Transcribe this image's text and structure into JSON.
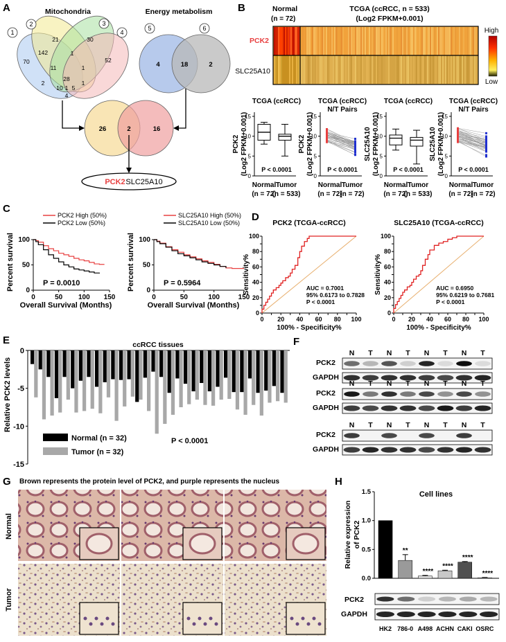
{
  "panels": {
    "A": "A",
    "B": "B",
    "C": "C",
    "D": "D",
    "E": "E",
    "F": "F",
    "G": "G",
    "H": "H"
  },
  "venn": {
    "mito_title": "Mitochondria",
    "energy_title": "Energy metabolism",
    "set_ids": [
      "1",
      "2",
      "3",
      "4",
      "5",
      "6"
    ],
    "mito_counts": [
      "70",
      "142",
      "21",
      "1",
      "30",
      "11",
      "1",
      "52",
      "28",
      "1",
      "2",
      "10",
      "5",
      "1",
      "4"
    ],
    "energy_counts": [
      "4",
      "18",
      "2"
    ],
    "overlap_counts": [
      "26",
      "2",
      "16"
    ],
    "result_genes": [
      "PCK2",
      "SLC25A10"
    ]
  },
  "heatmap": {
    "normal_label": "Normal",
    "normal_n": "(n = 72)",
    "title_line1": "TCGA (ccRCC, n = 533)",
    "title_line2": "(Log2 FPKM+0.001)",
    "row_labels": [
      "PCK2",
      "SLC25A10"
    ],
    "scale_high": "High",
    "scale_low": "Low"
  },
  "box_plots": [
    {
      "title": "TCGA (ccRCC)",
      "subtitle": "",
      "ylabel1": "PCK2",
      "ylabel2": "(Log2 FPKM+0.001)",
      "pvalue": "P < 0.0001",
      "xcat1": "Normal",
      "xcat2": "Tumor",
      "n1": "(n = 72)",
      "n2": "(n = 533)",
      "ticks": [
        "0",
        "5",
        "10",
        "15"
      ]
    },
    {
      "title": "TCGA (ccRCC)",
      "subtitle": "N/T Pairs",
      "ylabel1": "PCK2",
      "ylabel2": "(Log2 FPKM+0.001)",
      "pvalue": "P < 0.0001",
      "xcat1": "Normal",
      "xcat2": "Tumor",
      "n1": "(n = 72)",
      "n2": "(n = 72)",
      "ticks": [
        "0",
        "5",
        "10",
        "15"
      ]
    },
    {
      "title": "TCGA (ccRCC)",
      "subtitle": "",
      "ylabel1": "SLC25A10",
      "ylabel2": "(Log2 FPKM+0.001)",
      "pvalue": "P < 0.0001",
      "xcat1": "Normal",
      "xcat2": "Tumor",
      "n1": "(n = 72)",
      "n2": "(n = 533)",
      "ticks": [
        "0",
        "5",
        "10",
        "15"
      ]
    },
    {
      "title": "TCGA (ccRCC)",
      "subtitle": "N/T Pairs",
      "ylabel1": "SLC25A10",
      "ylabel2": "(Log2 FPKM+0.001)",
      "pvalue": "P < 0.0001",
      "xcat1": "Normal",
      "xcat2": "Tumor",
      "n1": "(n = 72)",
      "n2": "(n = 72)",
      "ticks": [
        "0",
        "5",
        "10",
        "15"
      ]
    }
  ],
  "chart_data": [
    {
      "type": "line",
      "id": "km-pck2",
      "title": "",
      "xlabel": "Overall Survival (Months)",
      "ylabel": "Percent survival",
      "xlim": [
        0,
        150
      ],
      "ylim": [
        0,
        100
      ],
      "xticks": [
        "0",
        "50",
        "100",
        "150"
      ],
      "yticks": [
        "0",
        "50",
        "100"
      ],
      "legend": [
        "PCK2 High (50%)",
        "PCK2 Low  (50%)"
      ],
      "pvalue": "P = 0.0010",
      "series": [
        {
          "name": "PCK2 High (50%)",
          "color": "#e84040",
          "x": [
            0,
            5,
            10,
            20,
            30,
            40,
            50,
            60,
            70,
            80,
            90,
            100,
            110,
            120,
            130,
            140
          ],
          "y": [
            100,
            98,
            95,
            88,
            82,
            78,
            73,
            70,
            67,
            63,
            60,
            58,
            55,
            52,
            51,
            51
          ]
        },
        {
          "name": "PCK2 Low (50%)",
          "color": "#000000",
          "x": [
            0,
            5,
            10,
            20,
            30,
            40,
            50,
            60,
            70,
            80,
            90,
            100,
            110,
            120,
            130
          ],
          "y": [
            100,
            96,
            90,
            80,
            70,
            63,
            56,
            50,
            46,
            42,
            40,
            38,
            36,
            34,
            33
          ]
        }
      ]
    },
    {
      "type": "line",
      "id": "km-slc",
      "title": "",
      "xlabel": "Overall Survival (Months)",
      "ylabel": "Percent survival",
      "xlim": [
        0,
        150
      ],
      "ylim": [
        0,
        100
      ],
      "xticks": [
        "0",
        "50",
        "100",
        "150"
      ],
      "yticks": [
        "0",
        "50",
        "100"
      ],
      "legend": [
        "SLC25A10 High (50%)",
        "SLC25A10 Low  (50%)"
      ],
      "pvalue": "P = 0.5964",
      "series": [
        {
          "name": "SLC25A10 High (50%)",
          "color": "#e84040",
          "x": [
            0,
            5,
            10,
            20,
            30,
            40,
            50,
            60,
            70,
            80,
            90,
            100,
            110,
            120,
            130,
            150
          ],
          "y": [
            100,
            97,
            93,
            86,
            80,
            75,
            70,
            66,
            62,
            58,
            55,
            51,
            47,
            44,
            43,
            43
          ]
        },
        {
          "name": "SLC25A10 Low (50%)",
          "color": "#000000",
          "x": [
            0,
            5,
            10,
            20,
            30,
            40,
            50,
            60,
            70,
            80,
            90,
            100,
            110,
            120
          ],
          "y": [
            100,
            96,
            92,
            85,
            78,
            72,
            68,
            64,
            60,
            56,
            53,
            50,
            47,
            44
          ]
        }
      ]
    },
    {
      "type": "line",
      "id": "roc-pck2",
      "title": "PCK2 (TCGA-ccRCC)",
      "xlabel": "100% - Specificity%",
      "ylabel": "Sensitivity%",
      "xlim": [
        0,
        100
      ],
      "ylim": [
        0,
        100
      ],
      "xticks": [
        "0",
        "10",
        "20",
        "30",
        "40",
        "50",
        "60",
        "70",
        "80",
        "90",
        "100"
      ],
      "yticks": [
        "0",
        "10",
        "20",
        "30",
        "40",
        "50",
        "60",
        "70",
        "80",
        "90",
        "100"
      ],
      "annotation": [
        "AUC = 0.7001",
        "95% 0.6173 to 0.7828",
        "P < 0.0001"
      ],
      "series": [
        {
          "name": "ROC",
          "color": "#e02020",
          "x": [
            0,
            2,
            4,
            6,
            8,
            10,
            12,
            15,
            18,
            20,
            22,
            25,
            28,
            30,
            32,
            35,
            38,
            40,
            42,
            45,
            48,
            50,
            55,
            60,
            70,
            80,
            90,
            100
          ],
          "y": [
            0,
            5,
            10,
            14,
            18,
            22,
            26,
            30,
            33,
            36,
            39,
            42,
            46,
            48,
            52,
            57,
            62,
            72,
            80,
            87,
            93,
            97,
            100,
            100,
            100,
            100,
            100,
            100
          ]
        }
      ]
    },
    {
      "type": "line",
      "id": "roc-slc",
      "title": "SLC25A10 (TCGA-ccRCC)",
      "xlabel": "100% - Specificity%",
      "ylabel": "Sensitivity%",
      "xlim": [
        0,
        100
      ],
      "ylim": [
        0,
        100
      ],
      "xticks": [
        "0",
        "10",
        "20",
        "30",
        "40",
        "50",
        "60",
        "70",
        "80",
        "90",
        "100"
      ],
      "yticks": [
        "0",
        "10",
        "20",
        "30",
        "40",
        "50",
        "60",
        "70",
        "80",
        "90",
        "100"
      ],
      "annotation": [
        "AUC = 0.6950",
        "95% 0.6219 to 0.7681",
        "P < 0.0001"
      ],
      "series": [
        {
          "name": "ROC",
          "color": "#e02020",
          "x": [
            0,
            2,
            4,
            6,
            8,
            10,
            12,
            15,
            18,
            20,
            22,
            25,
            28,
            30,
            32,
            35,
            38,
            40,
            45,
            50,
            55,
            60,
            65,
            70,
            80,
            90,
            100
          ],
          "y": [
            0,
            6,
            11,
            15,
            19,
            23,
            27,
            30,
            34,
            36,
            40,
            44,
            48,
            50,
            55,
            62,
            70,
            76,
            82,
            88,
            91,
            93,
            96,
            98,
            100,
            100,
            100
          ]
        }
      ]
    },
    {
      "type": "bar",
      "id": "ccrcc-tissues",
      "title": "ccRCC tissues",
      "ylabel": "Relative PCK2  levels",
      "ylim": [
        -15,
        0
      ],
      "yticks": [
        "0",
        "-5",
        "-10",
        "-15"
      ],
      "legend": [
        "Normal (n = 32)",
        "Tumor (n = 32)"
      ],
      "pvalue": "P < 0.0001",
      "series": [
        {
          "name": "Normal (n = 32)",
          "color": "#000000",
          "values": [
            -1.8,
            -2.5,
            -3.5,
            -6.3,
            -3.5,
            -5,
            -4,
            -3.5,
            -4.8,
            -4.2,
            -3.8,
            -3.9,
            -3.8,
            -6.8,
            -3.6,
            -2.8,
            -3.5,
            -5.6,
            -3.7,
            -4.4,
            -5.4,
            -4.3,
            -5.4,
            -4.8,
            -3.6,
            -5.5,
            -5.5,
            -3.7,
            -5.6,
            -5.3,
            -4.7,
            -5.6
          ]
        },
        {
          "name": "Tumor (n = 32)",
          "color": "#a8a8a8",
          "values": [
            -6.2,
            -9.1,
            -8.6,
            -8.2,
            -6.5,
            -8.2,
            -8,
            -7.7,
            -8.3,
            -6.2,
            -9.3,
            -7.4,
            -6.1,
            -6.5,
            -8,
            -11,
            -9.7,
            -8.5,
            -7.5,
            -7.1,
            -6.5,
            -7.2,
            -7.3,
            -6.5,
            -6.4,
            -7.8,
            -8.5,
            -7.2,
            -8.6,
            -6.9,
            -6.7,
            -6.9
          ]
        }
      ]
    },
    {
      "type": "bar",
      "id": "cell-lines",
      "title": "Cell lines",
      "ylabel": "Relative  expression of PCK2",
      "ylim": [
        0,
        1.5
      ],
      "yticks": [
        "0.0",
        "0.5",
        "1.0",
        "1.5"
      ],
      "categories": [
        "HK2",
        "786-0",
        "A498",
        "ACHN",
        "CAKI",
        "OSRC"
      ],
      "values": [
        1.0,
        0.31,
        0.04,
        0.13,
        0.28,
        0.01
      ],
      "errors": [
        0,
        0.1,
        0.01,
        0.01,
        0.01,
        0.005
      ],
      "significance": [
        "",
        "**",
        "****",
        "****",
        "****",
        "****"
      ],
      "colors": [
        "#000000",
        "#9a9a9a",
        "#e0e0e0",
        "#c8c8c8",
        "#505050",
        "#f0f0f0"
      ]
    }
  ],
  "western_f": {
    "lane_labels": [
      "N",
      "T",
      "N",
      "T",
      "N",
      "T",
      "N",
      "T"
    ],
    "row_labels": [
      "PCK2",
      "GAPDH"
    ],
    "blocks": [
      {
        "pck2": [
          0.55,
          0.25,
          0.65,
          0.15,
          0.85,
          0.1,
          0.95,
          0.1
        ],
        "gapdh": [
          0.8,
          0.75,
          0.8,
          0.8,
          0.75,
          0.7,
          0.8,
          0.85
        ]
      },
      {
        "pck2": [
          0.9,
          0.5,
          0.8,
          0.5,
          0.7,
          0.4,
          0.7,
          0.4
        ],
        "gapdh": [
          0.75,
          0.7,
          0.8,
          0.8,
          0.7,
          0.9,
          0.75,
          0.85
        ]
      },
      {
        "pck2": [
          0.75,
          0.0,
          0.7,
          0.0,
          0.7,
          0.0,
          0.75,
          0.0
        ],
        "gapdh": [
          0.75,
          0.85,
          0.8,
          0.8,
          0.7,
          0.8,
          0.85,
          0.8
        ]
      }
    ]
  },
  "ihc": {
    "caption": "Brown represents the protein level of PCK2, and purple represents the nucleus",
    "row_labels": [
      "Normal",
      "Tumor"
    ]
  },
  "western_h": {
    "row_labels": [
      "PCK2",
      "GAPDH"
    ],
    "pck2": [
      0.8,
      0.55,
      0.15,
      0.25,
      0.3,
      0.25
    ],
    "gapdh": [
      0.85,
      0.85,
      0.85,
      0.85,
      0.85,
      0.85
    ]
  },
  "colors": {
    "red": "#e84040",
    "orange": "#f0a050",
    "normal_pink": "#c98a8a",
    "tumor_tan": "#e8d8c0"
  }
}
